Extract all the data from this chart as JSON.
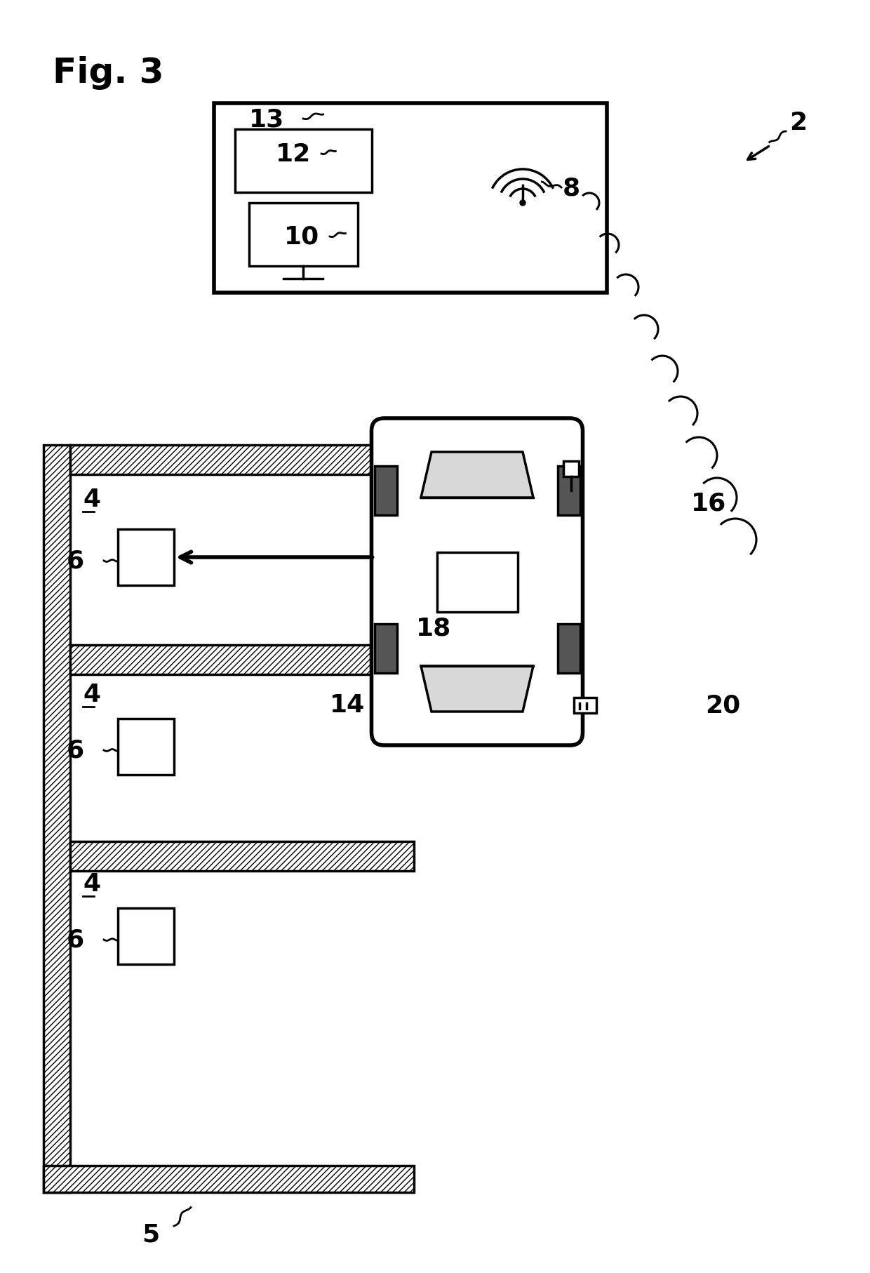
{
  "title": "Fig. 3",
  "background_color": "#ffffff",
  "label_2": "2",
  "label_4": "4",
  "label_5": "5",
  "label_6": "6",
  "label_8": "8",
  "label_10": "10",
  "label_12": "12",
  "label_13": "13",
  "label_14": "14",
  "label_16": "16",
  "label_18": "18",
  "label_20": "20"
}
